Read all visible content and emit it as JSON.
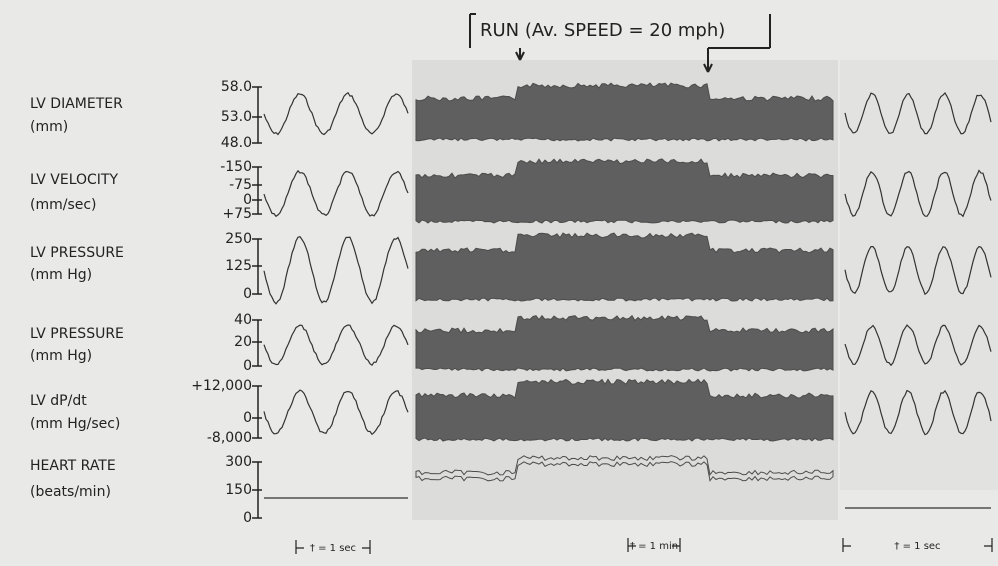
{
  "figure": {
    "title": "RUN (Av. SPEED = 20 mph)",
    "channels": [
      {
        "label": "LV DIAMETER",
        "unit": "(mm)",
        "ticks": [
          "58.0",
          "53.0",
          "48.0"
        ]
      },
      {
        "label": "LV VELOCITY",
        "unit": "(mm/sec)",
        "ticks": [
          "-150",
          "-75",
          "0",
          "+75"
        ]
      },
      {
        "label": "LV PRESSURE",
        "unit": "(mm Hg)",
        "ticks": [
          "250",
          "125",
          "0"
        ]
      },
      {
        "label": "LV PRESSURE",
        "unit": "(mm Hg)",
        "ticks": [
          "40",
          "20",
          "0"
        ]
      },
      {
        "label": "LV dP/dt",
        "unit": "(mm Hg/sec)",
        "ticks": [
          "+12,000",
          "0",
          "-8,000"
        ]
      },
      {
        "label": "HEART RATE",
        "unit": "(beats/min)",
        "ticks": [
          "300",
          "150",
          "0"
        ]
      }
    ],
    "scale_bars": [
      "† = 1 sec",
      "† = 1 min",
      "† = 1 sec"
    ]
  }
}
